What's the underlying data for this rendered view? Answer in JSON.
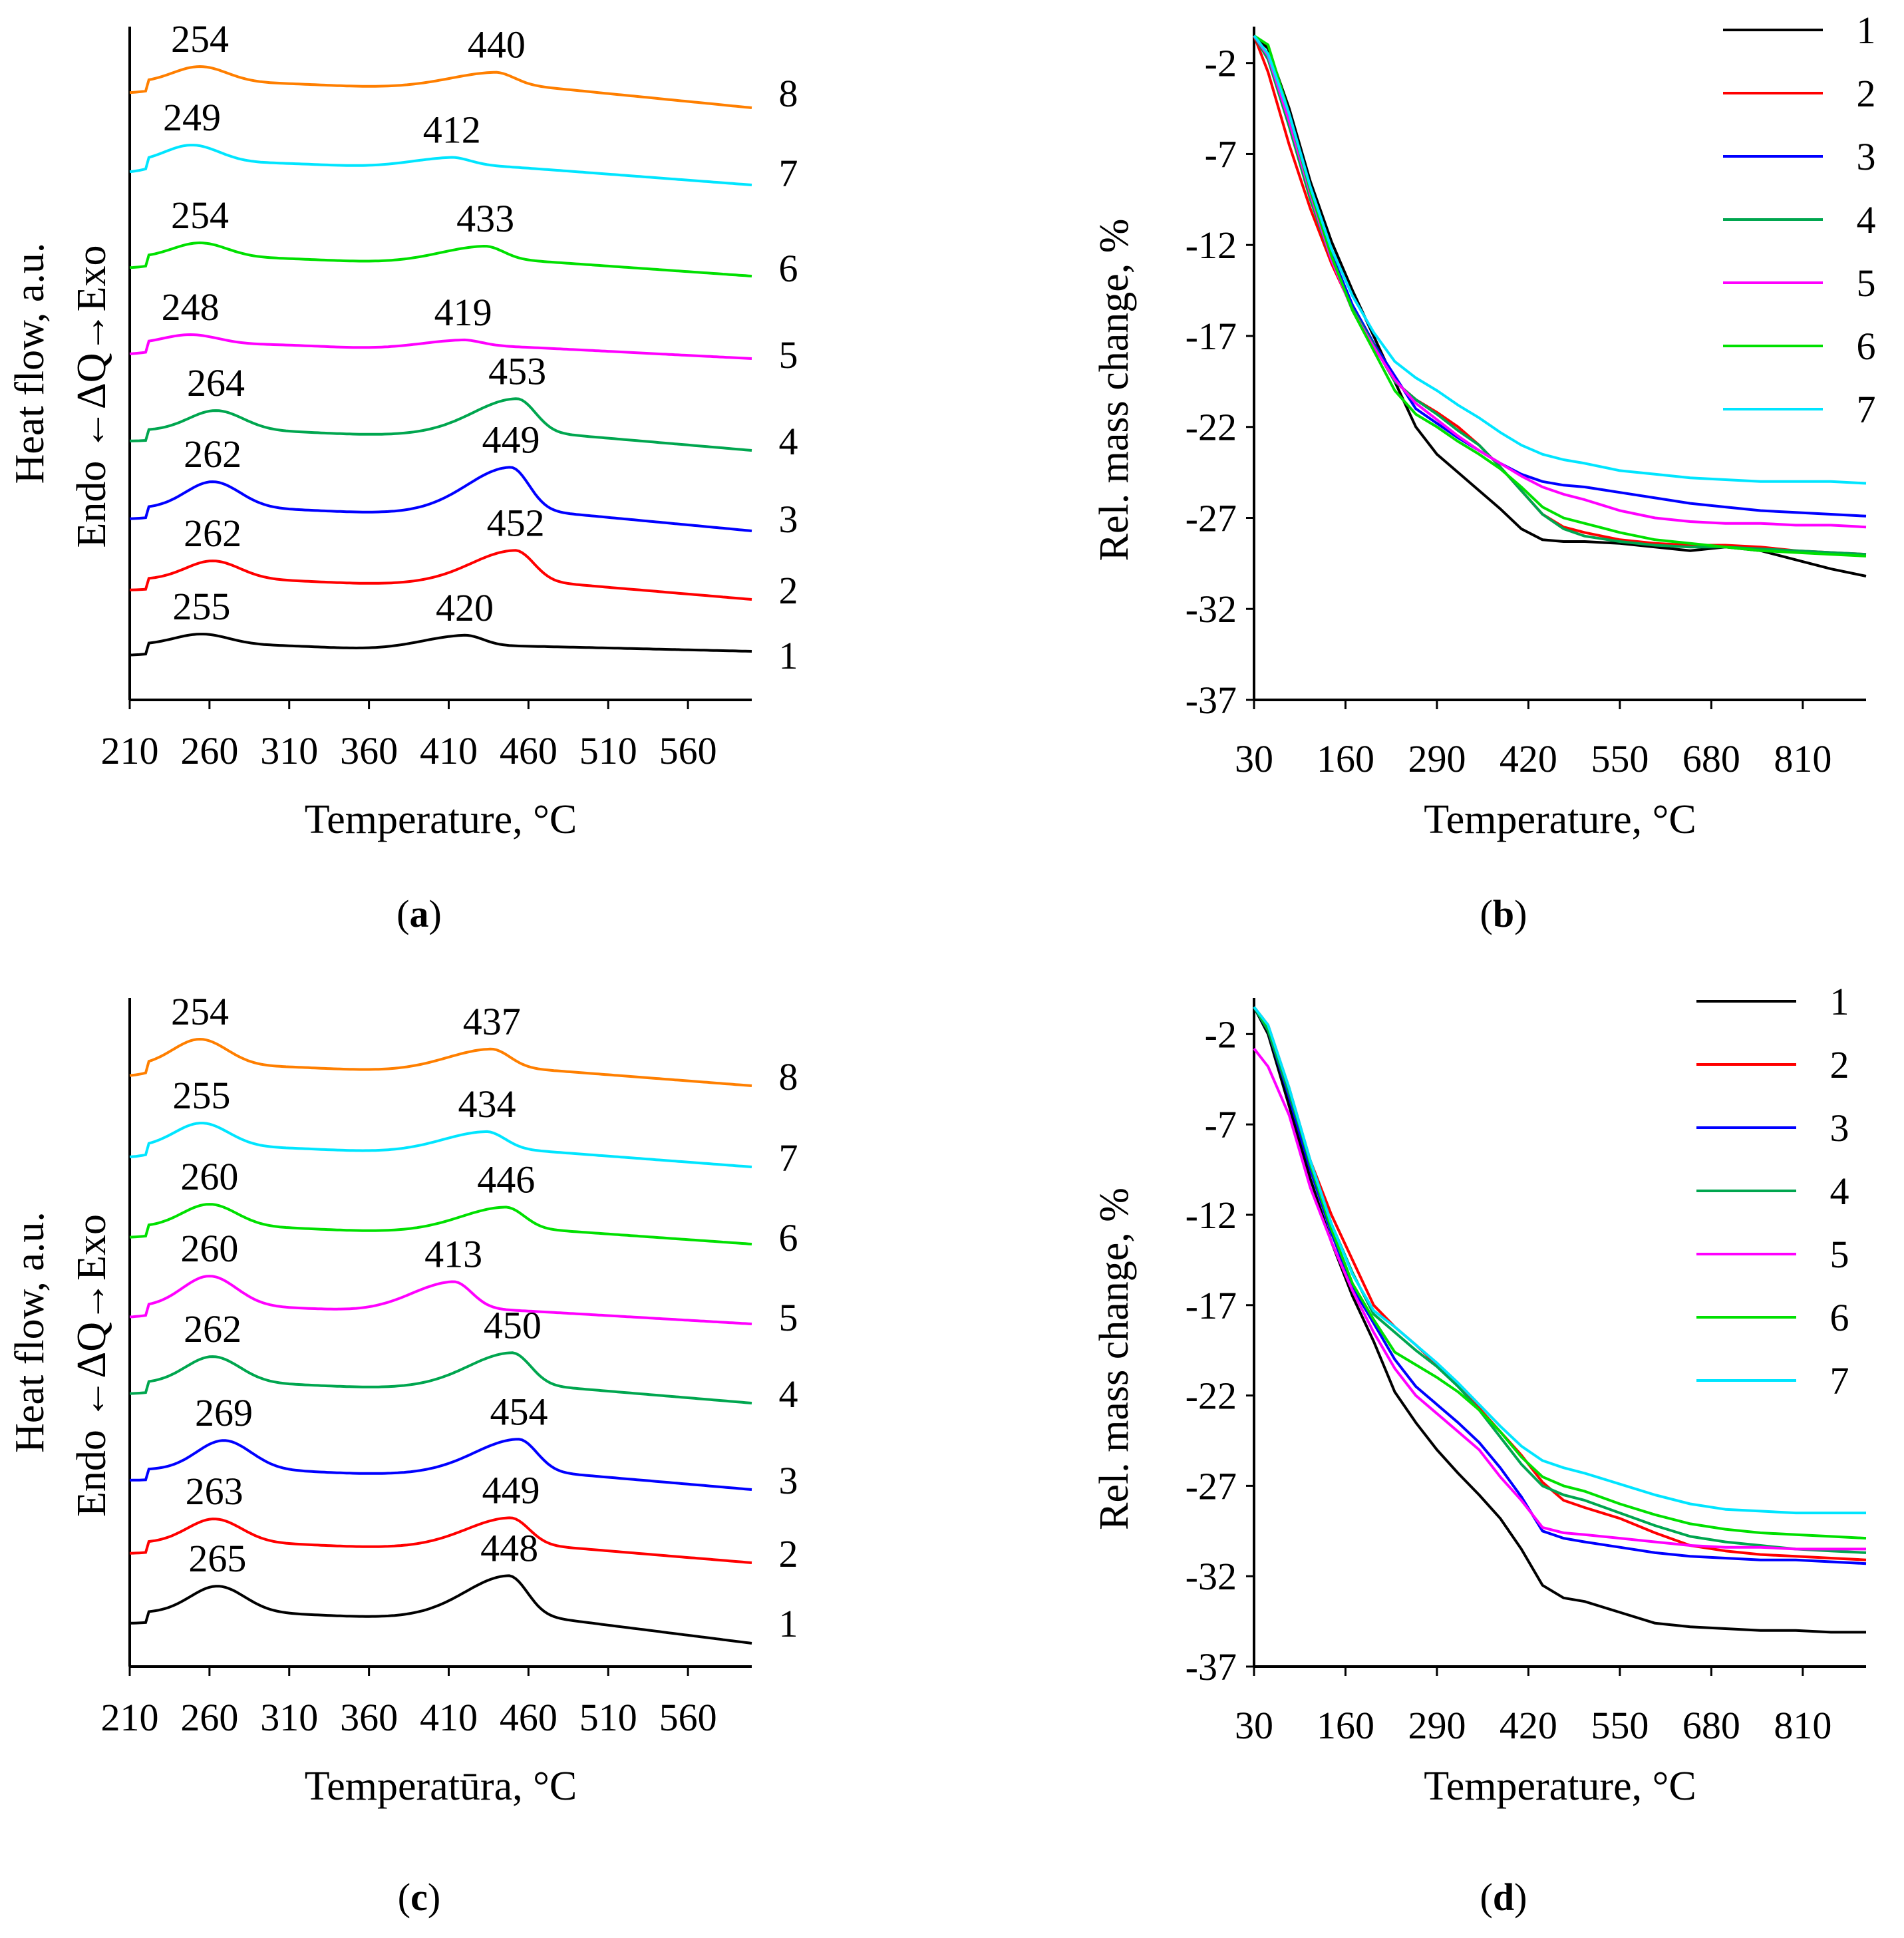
{
  "figure": {
    "captions": [
      {
        "open": "(",
        "letter": "a",
        "close": ")"
      },
      {
        "open": "(",
        "letter": "b",
        "close": ")"
      },
      {
        "open": "(",
        "letter": "c",
        "close": ")"
      },
      {
        "open": "(",
        "letter": "d",
        "close": ")"
      }
    ]
  },
  "chart_data": [
    {
      "panel": "a",
      "type": "line",
      "title": "",
      "xlabel": "Temperature, °C",
      "ylabel": "Heat flow, a.u.",
      "ylabel2": "Endo ←ΔQ→Exo",
      "x_ticks": [
        210,
        260,
        310,
        360,
        410,
        460,
        510,
        560
      ],
      "xlim": [
        210,
        600
      ],
      "grid": false,
      "series": [
        {
          "name": "1",
          "color": "#000000",
          "offset": 0,
          "peak1": {
            "x": 255,
            "label": "255",
            "h": 10
          },
          "peak2": {
            "x": 420,
            "label": "420",
            "h": 16
          },
          "baseline_end": -10
        },
        {
          "name": "2",
          "color": "#ff0000",
          "offset": 98,
          "peak1": {
            "x": 262,
            "label": "262",
            "h": 22
          },
          "peak2": {
            "x": 452,
            "label": "452",
            "h": 44
          },
          "baseline_end": -30
        },
        {
          "name": "3",
          "color": "#0000ff",
          "offset": 205,
          "peak1": {
            "x": 262,
            "label": "262",
            "h": 34
          },
          "peak2": {
            "x": 449,
            "label": "449",
            "h": 62
          },
          "baseline_end": -34
        },
        {
          "name": "4",
          "color": "#00a64f",
          "offset": 322,
          "peak1": {
            "x": 264,
            "label": "264",
            "h": 24
          },
          "peak2": {
            "x": 453,
            "label": "453",
            "h": 48
          },
          "baseline_end": -30
        },
        {
          "name": "5",
          "color": "#ff00ff",
          "offset": 452,
          "peak1": {
            "x": 248,
            "label": "248",
            "h": 8
          },
          "peak2": {
            "x": 419,
            "label": "419",
            "h": 8
          },
          "baseline_end": -22
        },
        {
          "name": "6",
          "color": "#00e000",
          "offset": 582,
          "peak1": {
            "x": 254,
            "label": "254",
            "h": 16
          },
          "peak2": {
            "x": 433,
            "label": "433",
            "h": 18
          },
          "baseline_end": -28
        },
        {
          "name": "7",
          "color": "#00e5ff",
          "offset": 725,
          "peak1": {
            "x": 249,
            "label": "249",
            "h": 20
          },
          "peak2": {
            "x": 412,
            "label": "412",
            "h": 10
          },
          "baseline_end": -34
        },
        {
          "name": "8",
          "color": "#ff7f00",
          "offset": 845,
          "peak1": {
            "x": 254,
            "label": "254",
            "h": 18
          },
          "peak2": {
            "x": 440,
            "label": "440",
            "h": 16
          },
          "baseline_end": -38
        }
      ]
    },
    {
      "panel": "b",
      "type": "line",
      "title": "",
      "xlabel": "Temperature, °C",
      "ylabel": "Rel. mass change, %",
      "x_ticks": [
        30,
        160,
        290,
        420,
        550,
        680,
        810
      ],
      "y_ticks": [
        -2,
        -7,
        -12,
        -17,
        -22,
        -27,
        -32,
        -37
      ],
      "xlim": [
        30,
        900
      ],
      "ylim": [
        -37,
        0
      ],
      "grid": false,
      "legend_position": "top-right",
      "x": [
        30,
        50,
        80,
        110,
        140,
        170,
        200,
        230,
        260,
        290,
        320,
        350,
        380,
        410,
        440,
        470,
        500,
        550,
        600,
        650,
        700,
        750,
        800,
        850,
        900
      ],
      "series": [
        {
          "name": "1",
          "color": "#000000",
          "values": [
            -0.5,
            -1.2,
            -4.5,
            -8.5,
            -11.8,
            -14.5,
            -17.0,
            -19.5,
            -22.0,
            -23.5,
            -24.5,
            -25.5,
            -26.5,
            -27.6,
            -28.2,
            -28.3,
            -28.3,
            -28.4,
            -28.6,
            -28.8,
            -28.6,
            -28.8,
            -29.3,
            -29.8,
            -30.2
          ]
        },
        {
          "name": "2",
          "color": "#ff0000",
          "values": [
            -0.5,
            -2.5,
            -6.5,
            -10.0,
            -13.0,
            -15.5,
            -17.5,
            -19.5,
            -20.5,
            -21.2,
            -22.0,
            -23.0,
            -24.2,
            -25.5,
            -26.8,
            -27.5,
            -27.8,
            -28.2,
            -28.4,
            -28.5,
            -28.5,
            -28.6,
            -28.8,
            -28.9,
            -29.0
          ]
        },
        {
          "name": "3",
          "color": "#0000ff",
          "values": [
            -0.5,
            -1.8,
            -5.0,
            -9.0,
            -12.5,
            -15.3,
            -17.4,
            -19.2,
            -21.0,
            -21.8,
            -22.6,
            -23.3,
            -24.0,
            -24.6,
            -25.0,
            -25.2,
            -25.3,
            -25.6,
            -25.9,
            -26.2,
            -26.4,
            -26.6,
            -26.7,
            -26.8,
            -26.9
          ]
        },
        {
          "name": "4",
          "color": "#00a64f",
          "values": [
            -0.5,
            -1.8,
            -5.5,
            -9.5,
            -12.8,
            -15.5,
            -17.5,
            -19.5,
            -20.5,
            -21.3,
            -22.2,
            -23.0,
            -24.2,
            -25.5,
            -26.8,
            -27.6,
            -28.0,
            -28.3,
            -28.5,
            -28.6,
            -28.6,
            -28.7,
            -28.8,
            -28.9,
            -29.0
          ]
        },
        {
          "name": "5",
          "color": "#ff00ff",
          "values": [
            -0.5,
            -1.6,
            -5.2,
            -9.2,
            -12.8,
            -15.6,
            -17.6,
            -19.4,
            -20.7,
            -21.6,
            -22.5,
            -23.3,
            -24.0,
            -24.7,
            -25.3,
            -25.7,
            -26.0,
            -26.6,
            -27.0,
            -27.2,
            -27.3,
            -27.3,
            -27.4,
            -27.4,
            -27.5
          ]
        },
        {
          "name": "6",
          "color": "#00e000",
          "values": [
            -0.5,
            -1.0,
            -4.8,
            -9.0,
            -12.6,
            -15.6,
            -17.8,
            -20.0,
            -21.3,
            -22.0,
            -22.8,
            -23.5,
            -24.3,
            -25.3,
            -26.4,
            -27.0,
            -27.3,
            -27.8,
            -28.2,
            -28.4,
            -28.6,
            -28.8,
            -28.9,
            -29.0,
            -29.1
          ]
        },
        {
          "name": "7",
          "color": "#00e5ff",
          "values": [
            -0.5,
            -1.5,
            -4.8,
            -8.8,
            -12.2,
            -14.8,
            -16.8,
            -18.4,
            -19.3,
            -20.0,
            -20.8,
            -21.5,
            -22.3,
            -23.0,
            -23.5,
            -23.8,
            -24.0,
            -24.4,
            -24.6,
            -24.8,
            -24.9,
            -25.0,
            -25.0,
            -25.0,
            -25.1
          ]
        }
      ]
    },
    {
      "panel": "c",
      "type": "line",
      "title": "",
      "xlabel": "Temperatūra, °C",
      "ylabel": "Heat flow, a.u.",
      "ylabel2": "Endo ←ΔQ→Exo",
      "x_ticks": [
        210,
        260,
        310,
        360,
        410,
        460,
        510,
        560
      ],
      "xlim": [
        210,
        600
      ],
      "grid": false,
      "series": [
        {
          "name": "1",
          "color": "#000000",
          "offset": 0,
          "peak1": {
            "x": 265,
            "label": "265",
            "h": 34
          },
          "peak2": {
            "x": 448,
            "label": "448",
            "h": 56
          },
          "baseline_end": -46
        },
        {
          "name": "2",
          "color": "#ff0000",
          "offset": 105,
          "peak1": {
            "x": 263,
            "label": "263",
            "h": 30
          },
          "peak2": {
            "x": 449,
            "label": "449",
            "h": 38
          },
          "baseline_end": -30
        },
        {
          "name": "3",
          "color": "#0000ff",
          "offset": 215,
          "peak1": {
            "x": 269,
            "label": "269",
            "h": 38
          },
          "peak2": {
            "x": 454,
            "label": "454",
            "h": 46
          },
          "baseline_end": -30
        },
        {
          "name": "4",
          "color": "#00a64f",
          "offset": 345,
          "peak1": {
            "x": 262,
            "label": "262",
            "h": 34
          },
          "peak2": {
            "x": 450,
            "label": "450",
            "h": 46
          },
          "baseline_end": -30
        },
        {
          "name": "5",
          "color": "#ff00ff",
          "offset": 460,
          "peak1": {
            "x": 260,
            "label": "260",
            "h": 40
          },
          "peak2": {
            "x": 413,
            "label": "413",
            "h": 40
          },
          "baseline_end": -26
        },
        {
          "name": "6",
          "color": "#00e000",
          "offset": 580,
          "peak1": {
            "x": 260,
            "label": "260",
            "h": 28
          },
          "peak2": {
            "x": 446,
            "label": "446",
            "h": 30
          },
          "baseline_end": -26
        },
        {
          "name": "7",
          "color": "#00e5ff",
          "offset": 700,
          "peak1": {
            "x": 255,
            "label": "255",
            "h": 30
          },
          "peak2": {
            "x": 434,
            "label": "434",
            "h": 24
          },
          "baseline_end": -30
        },
        {
          "name": "8",
          "color": "#ff7f00",
          "offset": 822,
          "peak1": {
            "x": 254,
            "label": "254",
            "h": 34
          },
          "peak2": {
            "x": 437,
            "label": "437",
            "h": 26
          },
          "baseline_end": -30
        }
      ]
    },
    {
      "panel": "d",
      "type": "line",
      "title": "",
      "xlabel": "Temperature, °C",
      "ylabel": "Rel. mass change, %",
      "x_ticks": [
        30,
        160,
        290,
        420,
        550,
        680,
        810
      ],
      "y_ticks": [
        -2,
        -7,
        -12,
        -17,
        -22,
        -27,
        -32,
        -37
      ],
      "xlim": [
        30,
        900
      ],
      "ylim": [
        -37,
        0
      ],
      "grid": false,
      "legend_position": "top-right",
      "x": [
        30,
        50,
        80,
        110,
        140,
        170,
        200,
        230,
        260,
        290,
        320,
        350,
        380,
        410,
        440,
        470,
        500,
        550,
        600,
        650,
        700,
        750,
        800,
        850,
        900
      ],
      "series": [
        {
          "name": "1",
          "color": "#000000",
          "values": [
            -0.5,
            -2.0,
            -6.0,
            -10.0,
            -13.5,
            -16.5,
            -19.0,
            -21.8,
            -23.5,
            -25.0,
            -26.3,
            -27.5,
            -28.8,
            -30.5,
            -32.5,
            -33.2,
            -33.4,
            -34.0,
            -34.6,
            -34.8,
            -34.9,
            -35.0,
            -35.0,
            -35.1,
            -35.1
          ]
        },
        {
          "name": "2",
          "color": "#ff0000",
          "values": [
            -0.5,
            -1.5,
            -5.0,
            -9.0,
            -12.0,
            -14.5,
            -17.0,
            -18.2,
            -19.2,
            -20.3,
            -21.5,
            -22.7,
            -24.0,
            -25.3,
            -26.8,
            -27.8,
            -28.2,
            -28.8,
            -29.6,
            -30.3,
            -30.6,
            -30.8,
            -30.9,
            -31.0,
            -31.1
          ]
        },
        {
          "name": "3",
          "color": "#0000ff",
          "values": [
            -0.5,
            -1.8,
            -5.5,
            -9.5,
            -13.0,
            -16.0,
            -18.0,
            -20.0,
            -21.5,
            -22.5,
            -23.5,
            -24.6,
            -26.0,
            -27.6,
            -29.5,
            -29.9,
            -30.1,
            -30.4,
            -30.7,
            -30.9,
            -31.0,
            -31.1,
            -31.1,
            -31.2,
            -31.3
          ]
        },
        {
          "name": "4",
          "color": "#00a64f",
          "values": [
            -0.5,
            -1.8,
            -5.3,
            -9.0,
            -12.5,
            -15.2,
            -17.5,
            -18.5,
            -19.5,
            -20.4,
            -21.5,
            -22.8,
            -24.3,
            -25.8,
            -27.0,
            -27.5,
            -27.8,
            -28.5,
            -29.2,
            -29.8,
            -30.1,
            -30.3,
            -30.5,
            -30.6,
            -30.7
          ]
        },
        {
          "name": "5",
          "color": "#ff00ff",
          "values": [
            -2.8,
            -3.8,
            -6.5,
            -10.5,
            -13.5,
            -16.2,
            -18.5,
            -20.5,
            -22.0,
            -23.0,
            -24.0,
            -25.0,
            -26.5,
            -27.8,
            -29.3,
            -29.6,
            -29.7,
            -29.9,
            -30.1,
            -30.3,
            -30.4,
            -30.4,
            -30.5,
            -30.5,
            -30.5
          ]
        },
        {
          "name": "6",
          "color": "#00e000",
          "values": [
            -0.5,
            -1.6,
            -5.0,
            -9.2,
            -12.8,
            -15.8,
            -17.8,
            -19.6,
            -20.3,
            -21.0,
            -21.8,
            -22.8,
            -24.0,
            -25.4,
            -26.5,
            -27.0,
            -27.3,
            -28.0,
            -28.6,
            -29.1,
            -29.4,
            -29.6,
            -29.7,
            -29.8,
            -29.9
          ]
        },
        {
          "name": "7",
          "color": "#00e5ff",
          "values": [
            -0.5,
            -1.5,
            -5.0,
            -9.0,
            -12.5,
            -15.3,
            -17.3,
            -18.2,
            -19.2,
            -20.2,
            -21.3,
            -22.5,
            -23.7,
            -24.8,
            -25.6,
            -26.0,
            -26.3,
            -26.9,
            -27.5,
            -28.0,
            -28.3,
            -28.4,
            -28.5,
            -28.5,
            -28.5
          ]
        }
      ]
    }
  ]
}
